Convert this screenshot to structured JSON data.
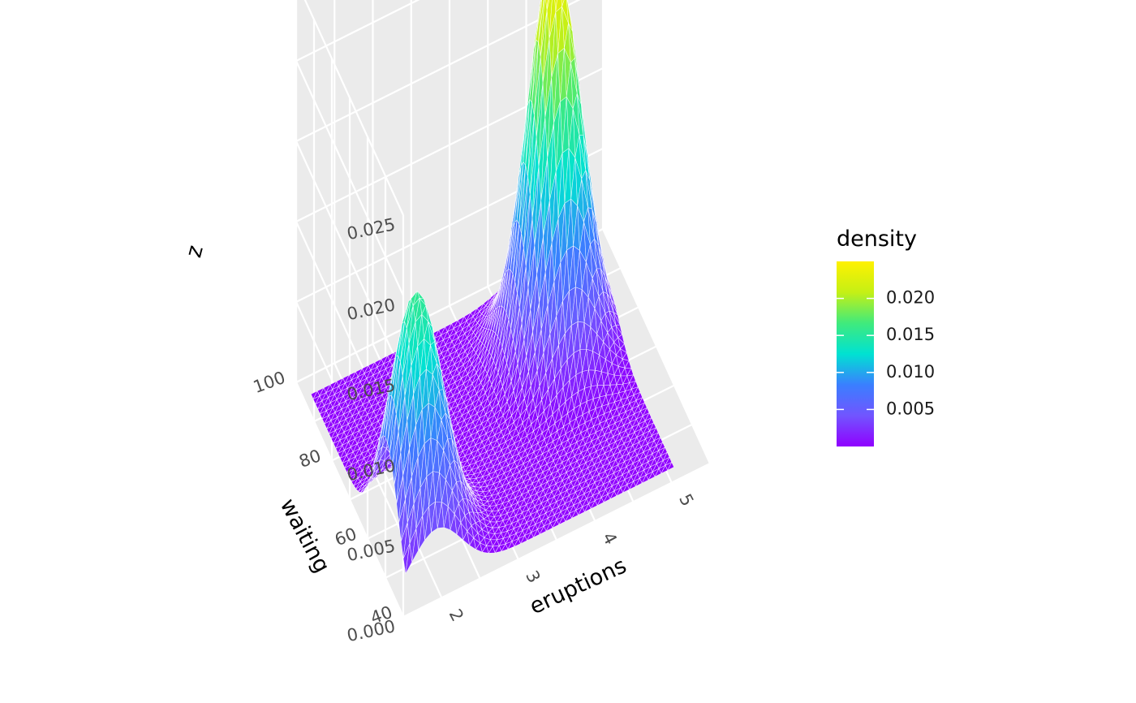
{
  "chart_data": {
    "type": "surface",
    "x": {
      "label": "eruptions",
      "range": [
        1.5,
        5.5
      ],
      "ticks": [
        "2",
        "3",
        "4",
        "5"
      ]
    },
    "y": {
      "label": "waiting",
      "range": [
        40,
        100
      ],
      "ticks": [
        "40",
        "60",
        "80",
        "100"
      ]
    },
    "z": {
      "label": "z",
      "range": [
        0,
        0.025
      ],
      "ticks": [
        "0.000",
        "0.005",
        "0.010",
        "0.015",
        "0.020",
        "0.025"
      ]
    },
    "series": [
      {
        "peaks": [
          {
            "eruptions": 2.0,
            "waiting": 54,
            "density": 0.0156
          },
          {
            "eruptions": 4.4,
            "waiting": 80,
            "density": 0.0245
          }
        ]
      }
    ],
    "fill": "density",
    "legend": {
      "title": "density",
      "position": "right",
      "range": [
        0,
        0.025
      ],
      "ticks": [
        "0.005",
        "0.010",
        "0.015",
        "0.020"
      ],
      "colors": [
        "#9000ff",
        "#7155ff",
        "#3a7fff",
        "#00e2d2",
        "#40ea7c",
        "#c5f015",
        "#fff100"
      ]
    },
    "grid": true,
    "colors": {
      "panel": "#ebebeb",
      "grid": "#ffffff",
      "mesh": "#ffffff"
    }
  }
}
